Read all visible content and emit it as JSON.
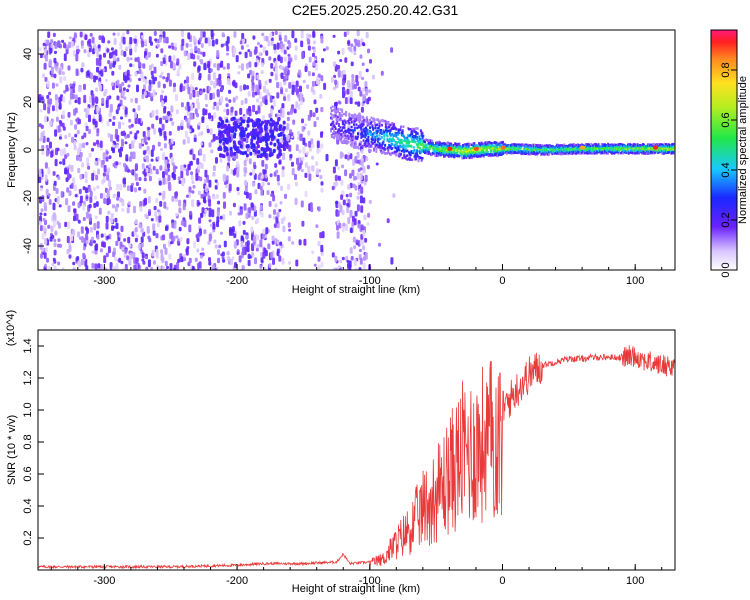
{
  "title": "C2E5.2025.250.20.42.G31",
  "chart_data": [
    {
      "type": "heatmap",
      "xlabel": "Height of straight line (km)",
      "ylabel": "Frequency (Hz)",
      "xlim": [
        -350,
        130
      ],
      "ylim": [
        -50,
        50
      ],
      "x_ticks": [
        "-300",
        "-200",
        "-100",
        "0",
        "100"
      ],
      "y_ticks": [
        "40",
        "20",
        "0",
        "-20",
        "-40"
      ],
      "colorbar": {
        "label": "Normalized spectral amplitude",
        "ticks": [
          "0.0",
          "0.2",
          "0.4",
          "0.6",
          "0.8"
        ],
        "range": [
          0,
          0.96
        ]
      },
      "ridge": {
        "x": [
          -130,
          -110,
          -90,
          -70,
          -50,
          -30,
          -10,
          10,
          30,
          60,
          90,
          130
        ],
        "frequency": [
          12,
          8,
          6,
          3,
          1,
          0,
          1,
          1,
          0.5,
          1,
          1,
          1
        ],
        "amplitude": [
          0.2,
          0.3,
          0.45,
          0.55,
          0.6,
          0.75,
          0.7,
          0.65,
          0.6,
          0.6,
          0.65,
          0.7
        ]
      }
    },
    {
      "type": "line",
      "xlabel": "Height of straight line (km)",
      "ylabel": "SNR (10 * v/v)",
      "y_multiplier": "(x10^4)",
      "xlim": [
        -350,
        130
      ],
      "ylim": [
        0,
        1.5
      ],
      "x_ticks": [
        "-300",
        "-200",
        "-100",
        "0",
        "100"
      ],
      "y_ticks": [
        "0.2",
        "0.4",
        "0.6",
        "0.8",
        "1.0",
        "1.2",
        "1.4"
      ],
      "color": "#e83a3a",
      "series": [
        {
          "x": [
            -350,
            -300,
            -250,
            -200,
            -180,
            -150,
            -125,
            -120,
            -115,
            -100,
            -90,
            -80,
            -70,
            -60,
            -50,
            -40,
            -30,
            -20,
            -10,
            0,
            10,
            20,
            30,
            40,
            50,
            60,
            70,
            80,
            90,
            100,
            110,
            120,
            130
          ],
          "values": [
            0.02,
            0.02,
            0.02,
            0.03,
            0.04,
            0.04,
            0.05,
            0.1,
            0.04,
            0.05,
            0.08,
            0.2,
            0.3,
            0.45,
            0.55,
            0.7,
            0.85,
            0.9,
            0.95,
            1.0,
            1.12,
            1.22,
            1.28,
            1.3,
            1.32,
            1.32,
            1.33,
            1.33,
            1.33,
            1.34,
            1.3,
            1.28,
            1.28
          ]
        }
      ]
    }
  ]
}
